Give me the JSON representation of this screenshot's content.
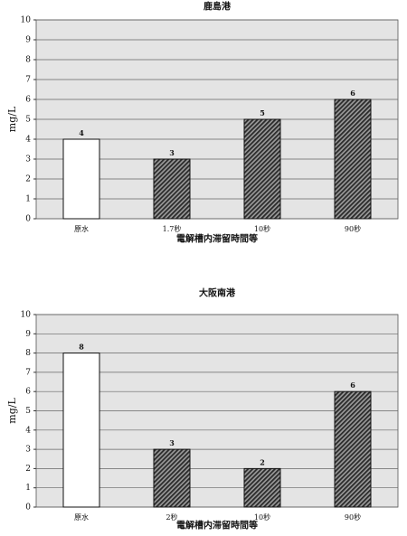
{
  "chart_data": [
    {
      "type": "bar",
      "title": "鹿島港",
      "y_label": "mg/L",
      "x_label": "電解槽内滞留時間等",
      "categories": [
        "原水",
        "1.7秒",
        "10秒",
        "90秒"
      ],
      "values": [
        4,
        3,
        5,
        6
      ],
      "colors": [
        "#ffffff",
        "#2a2a2a",
        "#2a2a2a",
        "#2a2a2a"
      ],
      "ylim": [
        0,
        10
      ],
      "yticks": [
        0,
        1,
        2,
        3,
        4,
        5,
        6,
        7,
        8,
        9,
        10
      ],
      "grid": true
    },
    {
      "type": "bar",
      "title": "大阪南港",
      "y_label": "mg/L",
      "x_label": "電解槽内滞留時間等",
      "categories": [
        "原水",
        "2秒",
        "10秒",
        "90秒"
      ],
      "values": [
        8,
        3,
        2,
        6
      ],
      "colors": [
        "#ffffff",
        "#2a2a2a",
        "#2a2a2a",
        "#2a2a2a"
      ],
      "ylim": [
        0,
        10
      ],
      "yticks": [
        0,
        1,
        2,
        3,
        4,
        5,
        6,
        7,
        8,
        9,
        10
      ],
      "grid": true
    }
  ]
}
